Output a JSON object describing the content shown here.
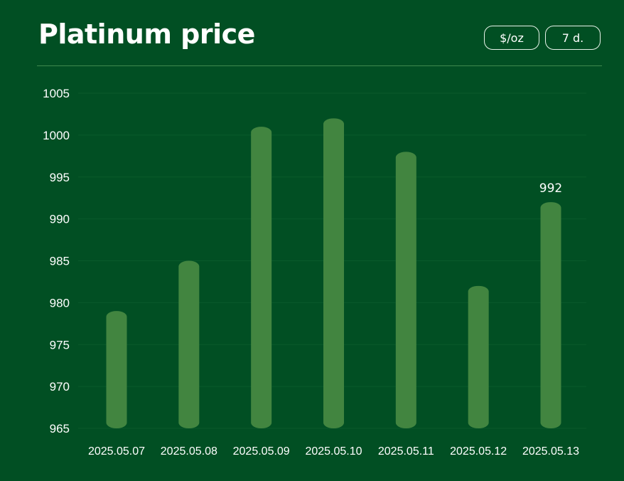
{
  "header": {
    "title": "Platinum price",
    "unit_label": "$/oz",
    "range_label": "7 d."
  },
  "colors": {
    "background": "#014f23",
    "bar": "#428540",
    "grid": "#0a5a2b",
    "divider": "#3f8a4e"
  },
  "chart_data": {
    "type": "bar",
    "title": "Platinum price",
    "xlabel": "",
    "ylabel": "",
    "categories": [
      "2025.05.07",
      "2025.05.08",
      "2025.05.09",
      "2025.05.10",
      "2025.05.11",
      "2025.05.12",
      "2025.05.13"
    ],
    "values": [
      979,
      985,
      1001,
      1002,
      998,
      982,
      992
    ],
    "ylim": [
      965,
      1005
    ],
    "yticks": [
      965,
      970,
      975,
      980,
      985,
      990,
      995,
      1000,
      1005
    ],
    "grid": true,
    "data_labels": [
      {
        "category": "2025.05.13",
        "text": "992"
      }
    ]
  }
}
